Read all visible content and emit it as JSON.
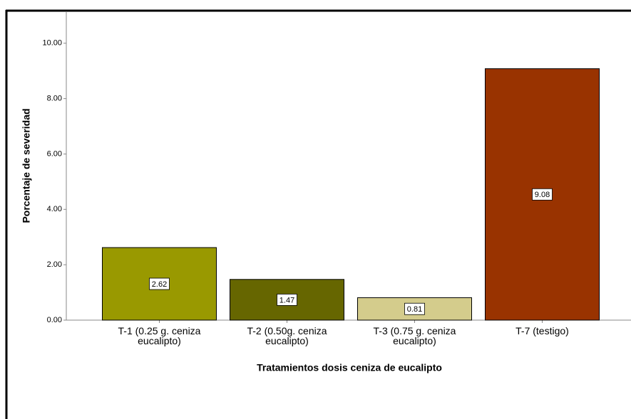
{
  "chart_data": {
    "type": "bar",
    "x_label": "Tratamientos dosis ceniza de eucalipto",
    "y_label": "Porcentaje de severidad",
    "categories": [
      "T-1 (0.25 g. ceniza eucalipto)",
      "T-2 (0.50g. ceniza eucalipto)",
      "T-3 (0.75 g. ceniza eucalipto)",
      "T-7 (testigo)"
    ],
    "values": [
      2.62,
      1.47,
      0.81,
      9.08
    ],
    "colors": [
      "#999900",
      "#666600",
      "#d4cc8c",
      "#993300"
    ],
    "ylim": [
      0,
      11.15
    ],
    "yticks": [
      {
        "value": 0,
        "label": "0.00"
      },
      {
        "value": 2,
        "label": "2.00"
      },
      {
        "value": 4,
        "label": "4.00"
      },
      {
        "value": 6,
        "label": "6.00"
      },
      {
        "value": 8,
        "label": "8.00"
      },
      {
        "value": 10,
        "label": "10.00"
      }
    ],
    "grid": false
  }
}
